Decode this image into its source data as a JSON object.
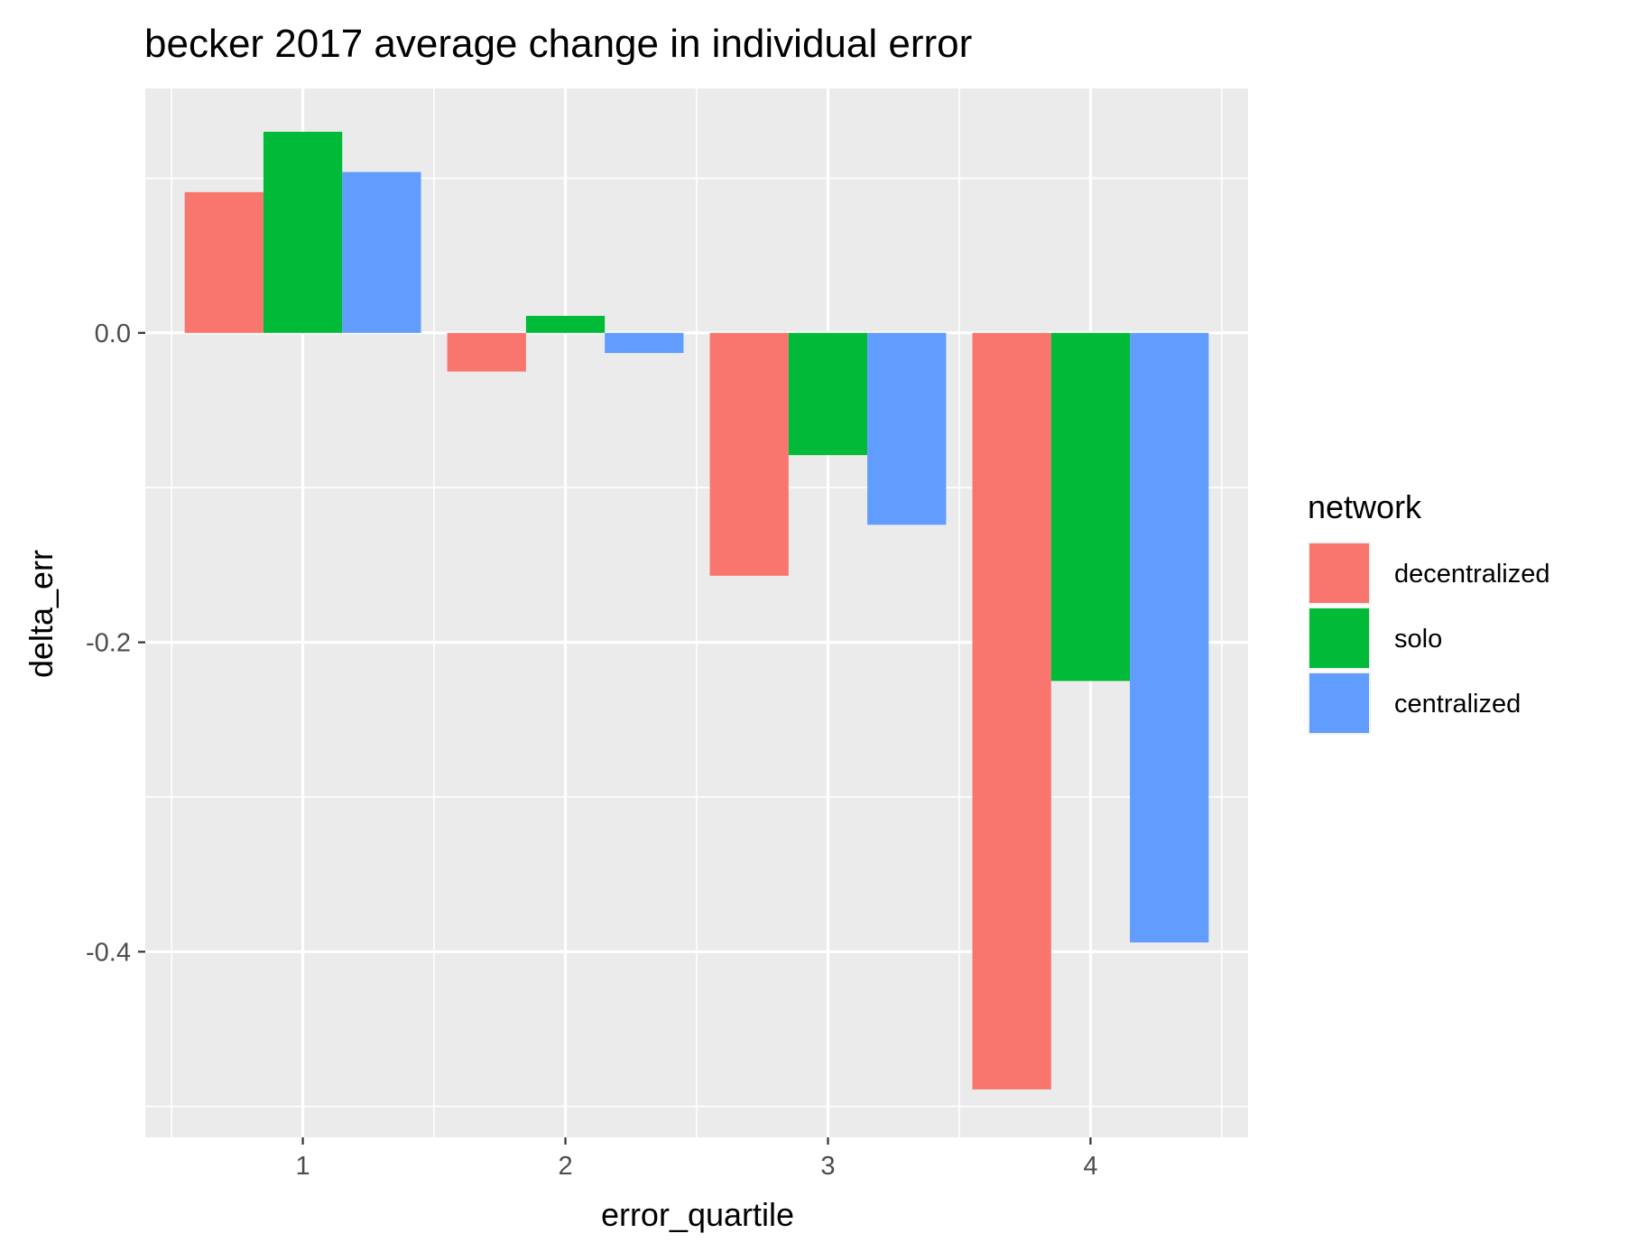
{
  "chart_data": {
    "type": "bar",
    "title": "becker 2017 average change in individual error",
    "xlabel": "error_quartile",
    "ylabel": "delta_err",
    "categories": [
      "1",
      "2",
      "3",
      "4"
    ],
    "ylim": [
      -0.52,
      0.158
    ],
    "yticks": [
      0.0,
      -0.2,
      -0.4
    ],
    "ytick_labels": [
      "0.0",
      "-0.2",
      "-0.4"
    ],
    "grid": true,
    "legend": {
      "title": "network",
      "position": "right"
    },
    "series": [
      {
        "name": "decentralized",
        "color": "#F8766D",
        "values": [
          0.091,
          -0.025,
          -0.157,
          -0.489
        ]
      },
      {
        "name": "solo",
        "color": "#00BA38",
        "values": [
          0.13,
          0.011,
          -0.079,
          -0.225
        ]
      },
      {
        "name": "centralized",
        "color": "#619CFF",
        "values": [
          0.104,
          -0.013,
          -0.124,
          -0.394
        ]
      }
    ]
  }
}
